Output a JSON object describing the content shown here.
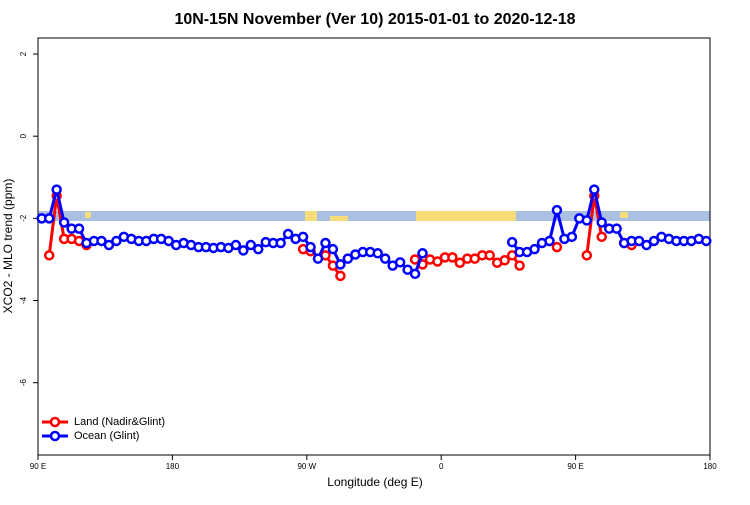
{
  "chart_data": {
    "type": "line",
    "title": "10N-15N November (Ver 10)   2015-01-01 to 2020-12-18",
    "xlabel": "Longitude (deg E)",
    "ylabel": "XCO2 - MLO trend (ppm)",
    "xlim": [
      90,
      540
    ],
    "ylim": [
      -7.76,
      2.39
    ],
    "xticks": [
      {
        "value": 90,
        "label": "90 E"
      },
      180,
      {
        "value": 270,
        "label": "90 W"
      },
      {
        "value": 360,
        "label": "0"
      },
      {
        "value": 450,
        "label": "90 E"
      },
      {
        "value": 540,
        "label": "180"
      }
    ],
    "yticks": [
      -6,
      -4,
      -2,
      0,
      2
    ],
    "legend": "bottomleft",
    "x": [
      92.5,
      97.5,
      102.5,
      107.5,
      112.5,
      117.5,
      122.5,
      127.5,
      132.5,
      137.5,
      142.5,
      147.5,
      152.5,
      157.5,
      162.5,
      167.5,
      172.5,
      177.5,
      182.5,
      187.5,
      192.5,
      197.5,
      202.5,
      207.5,
      212.5,
      217.5,
      222.5,
      227.5,
      232.5,
      237.5,
      242.5,
      247.5,
      252.5,
      257.5,
      262.5,
      267.5,
      272.5,
      277.5,
      282.5,
      287.5,
      292.5,
      297.5,
      302.5,
      307.5,
      312.5,
      317.5,
      322.5,
      327.5,
      332.5,
      337.5,
      342.5,
      347.5,
      352.5,
      357.5,
      362.5,
      367.5,
      372.5,
      377.5,
      382.5,
      387.5,
      392.5,
      397.5,
      402.5,
      407.5,
      412.5,
      417.5,
      422.5,
      427.5,
      432.5,
      437.5,
      442.5,
      447.5,
      452.5,
      457.5,
      462.5,
      467.5,
      472.5,
      477.5,
      482.5,
      487.5,
      492.5,
      497.5,
      502.5,
      507.5,
      512.5,
      517.5,
      522.5,
      527.5,
      532.5,
      537.5
    ],
    "series": [
      {
        "name": "Land (Nadir&Glint)",
        "color": "#ff0000",
        "values": [
          null,
          -2.9,
          -1.45,
          -2.5,
          -2.5,
          -2.55,
          -2.65,
          null,
          null,
          null,
          null,
          null,
          null,
          null,
          null,
          null,
          null,
          null,
          null,
          null,
          null,
          null,
          null,
          null,
          null,
          null,
          null,
          null,
          null,
          null,
          null,
          null,
          null,
          null,
          null,
          -2.75,
          -2.8,
          null,
          -2.9,
          -3.15,
          -3.4,
          null,
          null,
          null,
          null,
          null,
          null,
          null,
          null,
          null,
          -3.0,
          -3.12,
          -3.0,
          -3.05,
          -2.95,
          -2.95,
          -3.08,
          -2.98,
          -2.98,
          -2.9,
          -2.9,
          -3.08,
          -3.02,
          -2.9,
          -3.15,
          null,
          null,
          null,
          -2.55,
          -2.7,
          null,
          null,
          null,
          -2.9,
          -1.45,
          -2.45,
          null,
          null,
          -2.6,
          -2.65,
          null,
          null,
          null,
          null,
          null,
          null,
          null,
          null,
          null,
          null
        ]
      },
      {
        "name": "Ocean (Glint)",
        "color": "#0000ff",
        "values": [
          -2.0,
          -2.0,
          -1.3,
          -2.1,
          -2.25,
          -2.25,
          -2.6,
          -2.55,
          -2.55,
          -2.65,
          -2.55,
          -2.45,
          -2.5,
          -2.55,
          -2.55,
          -2.5,
          -2.5,
          -2.55,
          -2.65,
          -2.6,
          -2.65,
          -2.7,
          -2.7,
          -2.72,
          -2.7,
          -2.72,
          -2.65,
          -2.78,
          -2.65,
          -2.75,
          -2.58,
          -2.6,
          -2.6,
          -2.38,
          -2.5,
          -2.45,
          -2.7,
          -2.98,
          -2.6,
          -2.75,
          -3.12,
          -2.98,
          -2.88,
          -2.82,
          -2.82,
          -2.85,
          -2.98,
          -3.15,
          -3.07,
          -3.25,
          -3.35,
          -2.85,
          null,
          null,
          null,
          null,
          null,
          null,
          null,
          null,
          null,
          null,
          null,
          -2.58,
          -2.82,
          -2.82,
          -2.75,
          -2.6,
          -2.55,
          -1.8,
          -2.5,
          -2.45,
          -2.0,
          -2.05,
          -1.3,
          -2.1,
          -2.25,
          -2.25,
          -2.6,
          -2.55,
          -2.55,
          -2.65,
          -2.55,
          -2.45,
          -2.5,
          -2.55,
          -2.55,
          -2.55,
          -2.5,
          -2.55
        ]
      }
    ]
  }
}
